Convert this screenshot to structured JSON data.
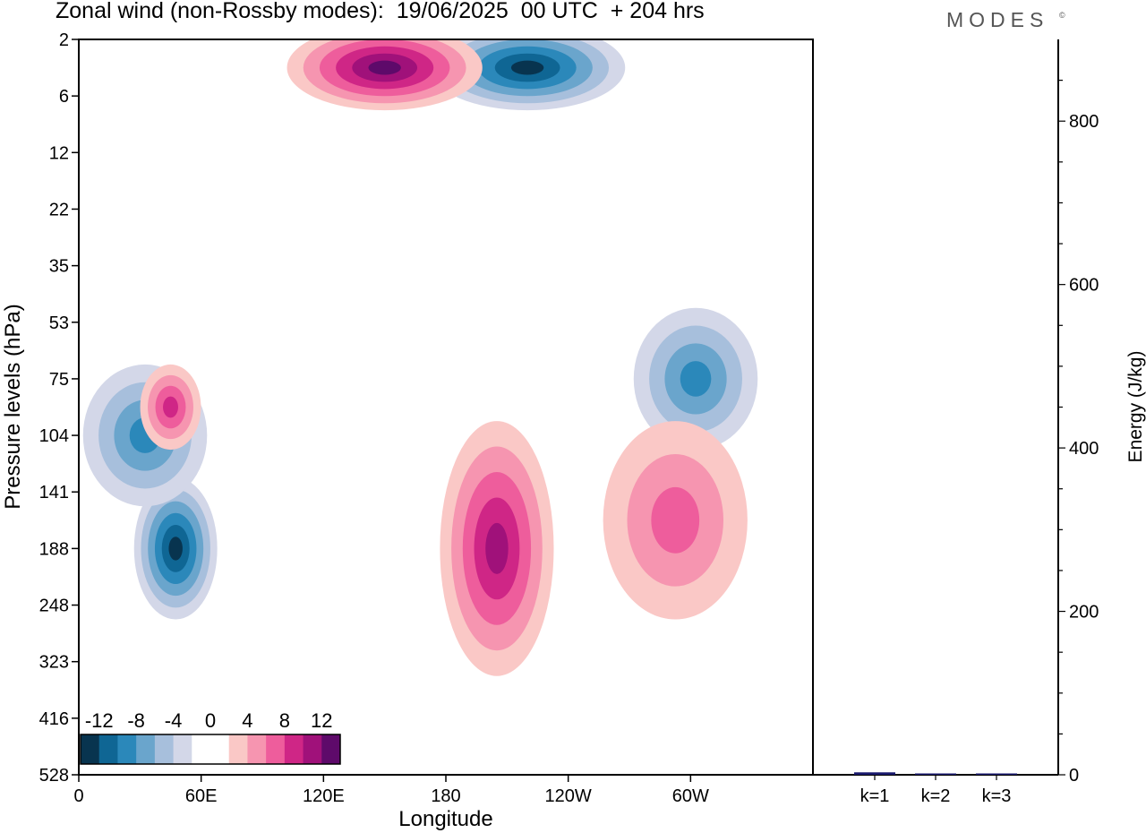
{
  "header": {
    "title": "Zonal wind (non-Rossby modes):  19/06/2025  00 UTC  + 204 hrs",
    "brand": "MODES",
    "brand_mark": "©"
  },
  "chart_data": [
    {
      "type": "heatmap",
      "title": "Zonal wind (non-Rossby modes):  19/06/2025  00 UTC  + 204 hrs",
      "xlabel": "Longitude",
      "ylabel": "Pressure levels (hPa)",
      "x_ticks": [
        "0",
        "60E",
        "120E",
        "180",
        "120W",
        "60W"
      ],
      "x_tick_degrees": [
        0,
        60,
        120,
        180,
        240,
        300
      ],
      "xlim": [
        0,
        360
      ],
      "y_ticks": [
        "2",
        "6",
        "12",
        "22",
        "35",
        "53",
        "75",
        "104",
        "141",
        "188",
        "248",
        "323",
        "416",
        "528"
      ],
      "color_levels": [
        -14,
        -12,
        -10,
        -8,
        -6,
        -4,
        -2,
        0,
        2,
        4,
        6,
        8,
        10,
        12,
        14
      ],
      "colorbar_labels": [
        "-12",
        "-8",
        "-4",
        "0",
        "4",
        "8",
        "12"
      ],
      "colorbar_colors": [
        "#08344f",
        "#0f6694",
        "#2b88ba",
        "#6aa5cc",
        "#a7bfdc",
        "#d3d7e8",
        "#ffffff",
        "#ffffff",
        "#fac8c6",
        "#f695b0",
        "#ee5d9c",
        "#cf2686",
        "#a0117a",
        "#5e0a6a"
      ],
      "features": [
        {
          "kind": "negative",
          "lon_range": [
            35,
            60
          ],
          "level_range": [
            "141",
            "248"
          ],
          "peak": -14
        },
        {
          "kind": "negative",
          "lon_range": [
            10,
            55
          ],
          "level_range": [
            "75",
            "141"
          ],
          "peak": -8
        },
        {
          "kind": "negative",
          "lon_range": [
            180,
            260
          ],
          "level_range": [
            "2",
            "6"
          ],
          "peak": -14
        },
        {
          "kind": "negative",
          "lon_range": [
            280,
            325
          ],
          "level_range": [
            "53",
            "104"
          ],
          "peak": -8
        },
        {
          "kind": "positive",
          "lon_range": [
            110,
            190
          ],
          "level_range": [
            "2",
            "6"
          ],
          "peak": 12
        },
        {
          "kind": "positive",
          "lon_range": [
            38,
            52
          ],
          "level_range": [
            "75",
            "104"
          ],
          "peak": 8
        },
        {
          "kind": "positive",
          "lon_range": [
            185,
            225
          ],
          "level_range": [
            "104",
            "323"
          ],
          "peak": 10
        },
        {
          "kind": "positive",
          "lon_range": [
            265,
            320
          ],
          "level_range": [
            "104",
            "248"
          ],
          "peak": 6
        }
      ]
    },
    {
      "type": "bar",
      "ylabel": "Energy (J/kg)",
      "categories": [
        "k=1",
        "k=2",
        "k=3"
      ],
      "values": [
        3,
        1.5,
        0.8
      ],
      "ylim": [
        0,
        900
      ],
      "y_ticks": [
        0,
        200,
        400,
        600,
        800
      ],
      "bar_color": "#1a1a6e"
    }
  ]
}
